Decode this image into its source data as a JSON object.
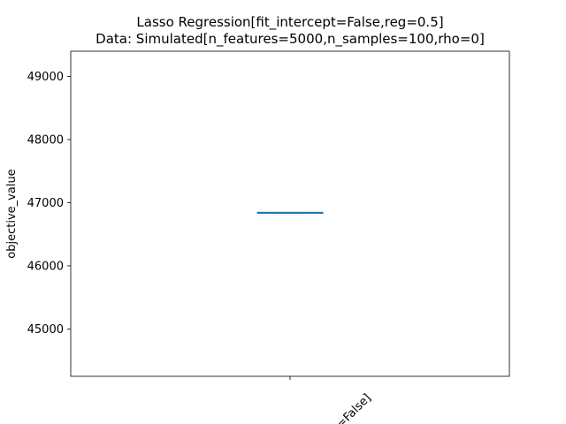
{
  "chart_data": {
    "type": "box",
    "title": "Lasso Regression[fit_intercept=False,reg=0.5]",
    "subtitle": "Data: Simulated[n_features=5000,n_samples=100,rho=0]",
    "xlabel": "",
    "ylabel": "objective_value",
    "ylim": [
      44250,
      49400
    ],
    "yticks": [
      45000,
      46000,
      47000,
      48000,
      49000
    ],
    "categories": [
      "=False]"
    ],
    "series": [
      {
        "values": [
          46840
        ]
      }
    ],
    "box": {
      "median": 46840,
      "q1": 46840,
      "q3": 46840,
      "whisker_low": 46840,
      "whisker_high": 46840
    },
    "colors": {
      "box": "#1f77b4",
      "median": "#ff7f0e"
    },
    "grid": false,
    "legend": "none"
  }
}
